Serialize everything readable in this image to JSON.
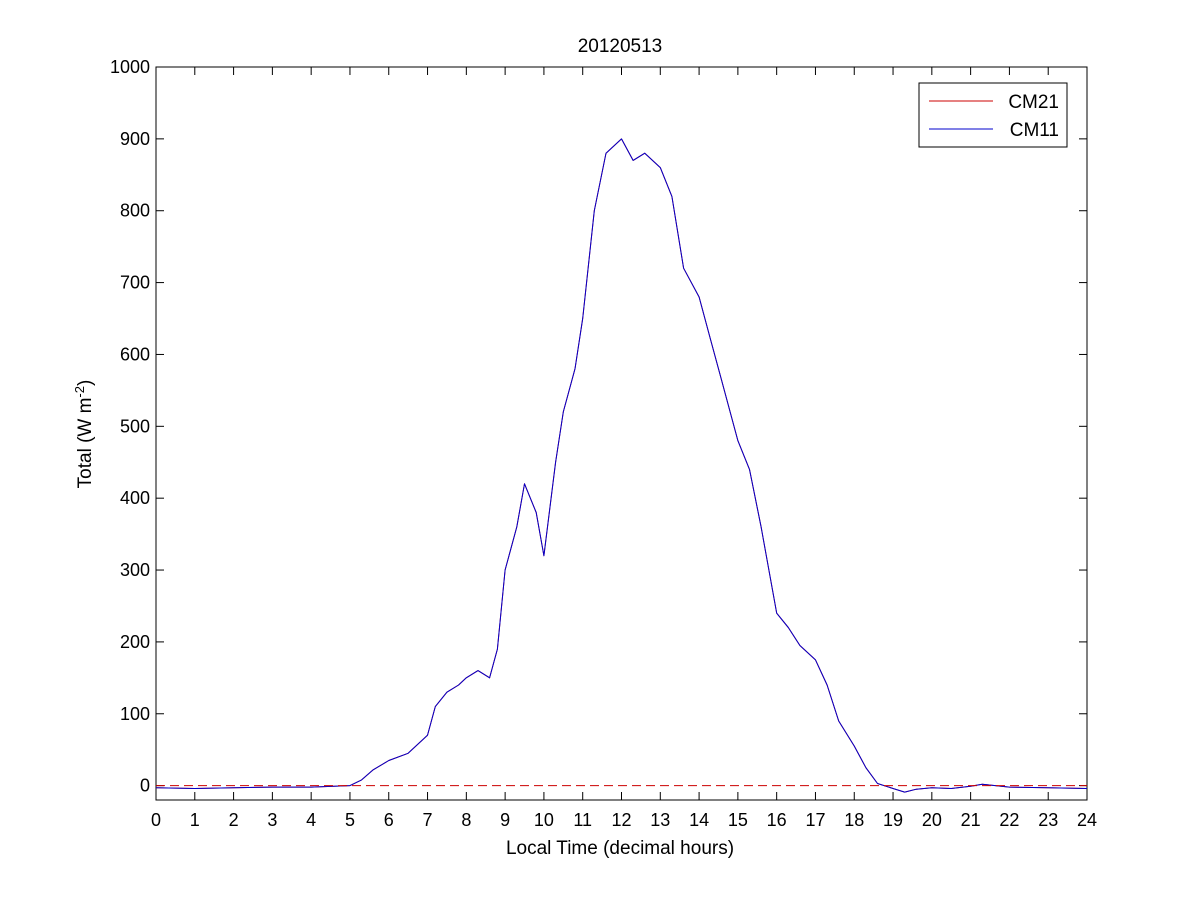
{
  "chart_data": {
    "type": "line",
    "title": "20120513",
    "xlabel": "Local Time (decimal hours)",
    "ylabel_main": "Total (W m",
    "ylabel_sup": "-2",
    "ylabel_close": ")",
    "xlim": [
      0,
      24
    ],
    "ylim": [
      -20,
      1000
    ],
    "xticks": [
      0,
      1,
      2,
      3,
      4,
      5,
      6,
      7,
      8,
      9,
      10,
      11,
      12,
      13,
      14,
      15,
      16,
      17,
      18,
      19,
      20,
      21,
      22,
      23,
      24
    ],
    "yticks": [
      0,
      100,
      200,
      300,
      400,
      500,
      600,
      700,
      800,
      900,
      1000
    ],
    "grid": false,
    "legend_position": "top-right",
    "zero_reference_line": {
      "y": 0,
      "style": "dashed",
      "color": "#cc0000"
    },
    "series": [
      {
        "name": "CM21",
        "color": "#cc0000",
        "points": [
          [
            0,
            -3
          ],
          [
            1,
            -4
          ],
          [
            2,
            -3
          ],
          [
            3,
            -2
          ],
          [
            4,
            -2
          ],
          [
            5,
            0
          ],
          [
            5.3,
            8
          ],
          [
            5.6,
            22
          ],
          [
            6,
            35
          ],
          [
            6.5,
            45
          ],
          [
            7,
            70
          ],
          [
            7.2,
            110
          ],
          [
            7.5,
            130
          ],
          [
            7.8,
            140
          ],
          [
            8,
            150
          ],
          [
            8.3,
            160
          ],
          [
            8.6,
            150
          ],
          [
            8.8,
            190
          ],
          [
            9,
            300
          ],
          [
            9.3,
            360
          ],
          [
            9.5,
            420
          ],
          [
            9.8,
            380
          ],
          [
            10,
            320
          ],
          [
            10.3,
            450
          ],
          [
            10.5,
            520
          ],
          [
            10.8,
            580
          ],
          [
            11,
            650
          ],
          [
            11.3,
            800
          ],
          [
            11.6,
            880
          ],
          [
            12,
            900
          ],
          [
            12.3,
            870
          ],
          [
            12.6,
            880
          ],
          [
            13,
            860
          ],
          [
            13.3,
            820
          ],
          [
            13.6,
            720
          ],
          [
            14,
            680
          ],
          [
            14.3,
            620
          ],
          [
            14.6,
            560
          ],
          [
            15,
            480
          ],
          [
            15.3,
            440
          ],
          [
            15.6,
            360
          ],
          [
            16,
            240
          ],
          [
            16.3,
            220
          ],
          [
            16.6,
            195
          ],
          [
            17,
            175
          ],
          [
            17.3,
            140
          ],
          [
            17.6,
            90
          ],
          [
            18,
            55
          ],
          [
            18.3,
            25
          ],
          [
            18.6,
            3
          ],
          [
            19,
            -4
          ],
          [
            19.3,
            -9
          ],
          [
            19.6,
            -5
          ],
          [
            20,
            -3
          ],
          [
            20.5,
            -4
          ],
          [
            21,
            -1
          ],
          [
            21.3,
            2
          ],
          [
            22,
            -2
          ],
          [
            23,
            -3
          ],
          [
            24,
            -4
          ]
        ]
      },
      {
        "name": "CM11",
        "color": "#0000cc",
        "points": [
          [
            0,
            -3
          ],
          [
            1,
            -4
          ],
          [
            2,
            -3
          ],
          [
            3,
            -2
          ],
          [
            4,
            -2
          ],
          [
            5,
            0
          ],
          [
            5.3,
            8
          ],
          [
            5.6,
            22
          ],
          [
            6,
            35
          ],
          [
            6.5,
            45
          ],
          [
            7,
            70
          ],
          [
            7.2,
            110
          ],
          [
            7.5,
            130
          ],
          [
            7.8,
            140
          ],
          [
            8,
            150
          ],
          [
            8.3,
            160
          ],
          [
            8.6,
            150
          ],
          [
            8.8,
            190
          ],
          [
            9,
            300
          ],
          [
            9.3,
            360
          ],
          [
            9.5,
            420
          ],
          [
            9.8,
            380
          ],
          [
            10,
            320
          ],
          [
            10.3,
            450
          ],
          [
            10.5,
            520
          ],
          [
            10.8,
            580
          ],
          [
            11,
            650
          ],
          [
            11.3,
            800
          ],
          [
            11.6,
            880
          ],
          [
            12,
            900
          ],
          [
            12.3,
            870
          ],
          [
            12.6,
            880
          ],
          [
            13,
            860
          ],
          [
            13.3,
            820
          ],
          [
            13.6,
            720
          ],
          [
            14,
            680
          ],
          [
            14.3,
            620
          ],
          [
            14.6,
            560
          ],
          [
            15,
            480
          ],
          [
            15.3,
            440
          ],
          [
            15.6,
            360
          ],
          [
            16,
            240
          ],
          [
            16.3,
            220
          ],
          [
            16.6,
            195
          ],
          [
            17,
            175
          ],
          [
            17.3,
            140
          ],
          [
            17.6,
            90
          ],
          [
            18,
            55
          ],
          [
            18.3,
            25
          ],
          [
            18.6,
            3
          ],
          [
            19,
            -4
          ],
          [
            19.3,
            -9
          ],
          [
            19.6,
            -5
          ],
          [
            20,
            -3
          ],
          [
            20.5,
            -4
          ],
          [
            21,
            -1
          ],
          [
            21.3,
            2
          ],
          [
            22,
            -2
          ],
          [
            23,
            -3
          ],
          [
            24,
            -4
          ]
        ]
      }
    ]
  }
}
